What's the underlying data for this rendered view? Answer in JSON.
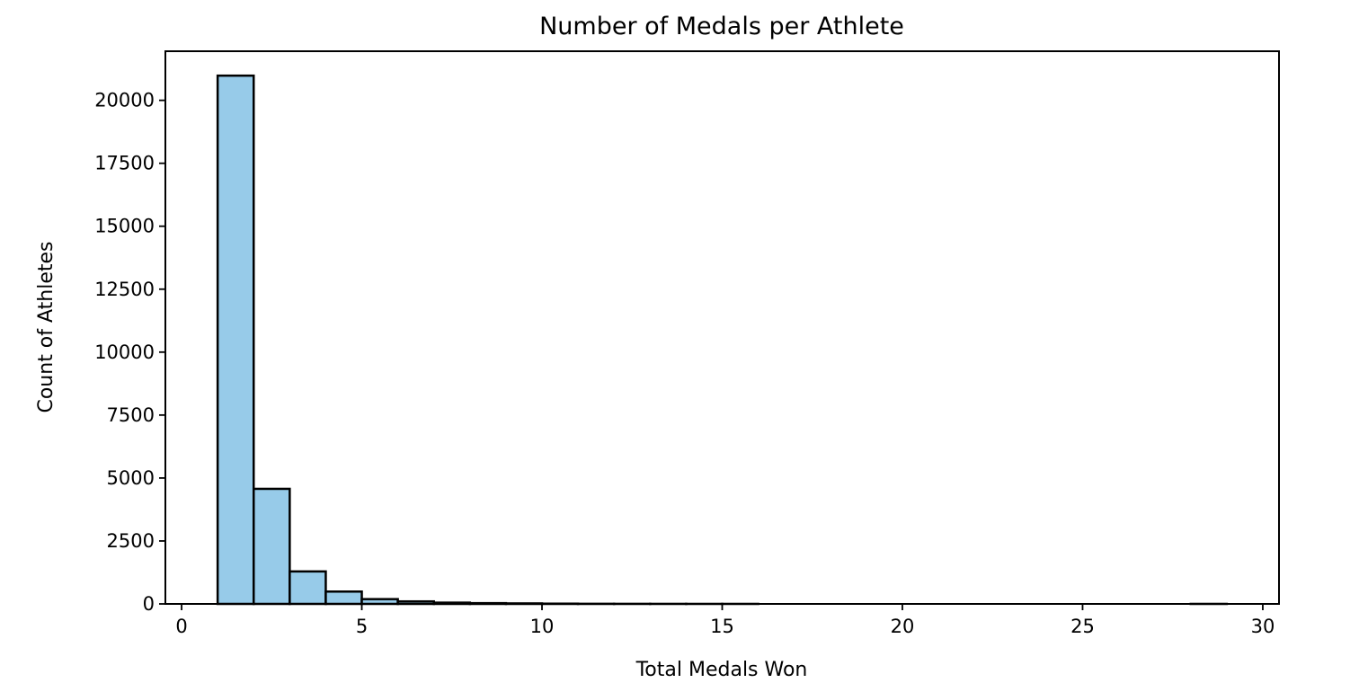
{
  "chart_data": {
    "type": "bar",
    "title": "Number of Medals per Athlete",
    "xlabel": "Total Medals Won",
    "ylabel": "Count of Athletes",
    "xlim": [
      -0.45,
      30.45
    ],
    "ylim": [
      0,
      21950
    ],
    "xticks": [
      0,
      5,
      10,
      15,
      20,
      25,
      30
    ],
    "yticks": [
      0,
      2500,
      5000,
      7500,
      10000,
      12500,
      15000,
      17500,
      20000
    ],
    "bin_width": 1,
    "bins": [
      {
        "start": 1,
        "value": 20980
      },
      {
        "start": 2,
        "value": 4570
      },
      {
        "start": 3,
        "value": 1290
      },
      {
        "start": 4,
        "value": 490
      },
      {
        "start": 5,
        "value": 190
      },
      {
        "start": 6,
        "value": 100
      },
      {
        "start": 7,
        "value": 50
      },
      {
        "start": 8,
        "value": 30
      },
      {
        "start": 9,
        "value": 20
      },
      {
        "start": 10,
        "value": 10
      },
      {
        "start": 11,
        "value": 5
      },
      {
        "start": 12,
        "value": 3
      },
      {
        "start": 13,
        "value": 2
      },
      {
        "start": 14,
        "value": 1
      },
      {
        "start": 15,
        "value": 1
      },
      {
        "start": 28,
        "value": 1
      }
    ],
    "bar_color": "#97cbe9",
    "edge_color": "#000000",
    "grid": false,
    "legend": "none"
  }
}
